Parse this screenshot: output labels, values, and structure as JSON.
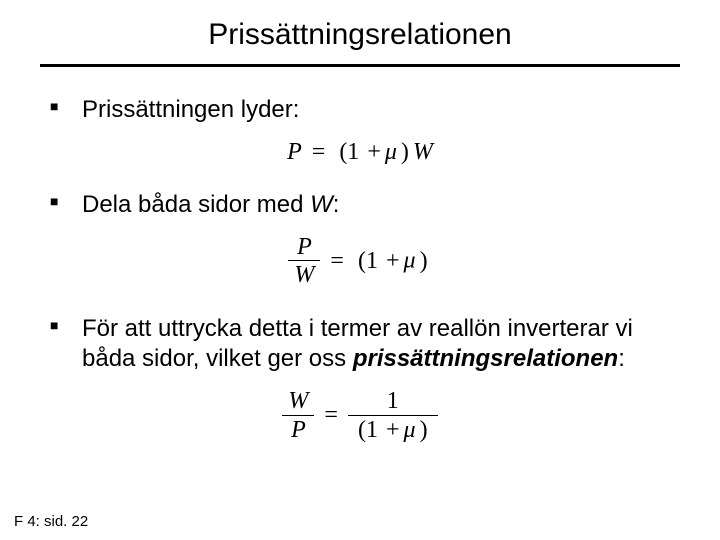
{
  "title": "Prissättningsrelationen",
  "bullets": {
    "b1": "Prissättningen lyder:",
    "b2_pre": "Dela båda sidor med ",
    "b2_var": "W",
    "b2_post": ":",
    "b3_pre": "För att uttrycka detta i termer av reallön inverterar vi båda sidor, vilket ger oss ",
    "b3_bold": "prissättningsrelationen",
    "b3_post": ":"
  },
  "eq1": {
    "P": "P",
    "eq": "=",
    "lp": "(1",
    "plus": "+",
    "mu": "μ",
    "rp": ")",
    "W": "W"
  },
  "eq2": {
    "num": "P",
    "den": "W",
    "eq": "=",
    "lp": "(1",
    "plus": "+",
    "mu": "μ",
    "rp": ")"
  },
  "eq3": {
    "lnum": "W",
    "lden": "P",
    "eq": "=",
    "rnum": "1",
    "rlp": "(1",
    "rplus": "+",
    "rmu": "μ",
    "rrp": ")"
  },
  "footer": "F 4: sid. 22",
  "colors": {
    "text": "#000000",
    "bg": "#ffffff",
    "rule": "#000000"
  },
  "typography": {
    "title_fontsize": 30,
    "body_fontsize": 24,
    "eq_fontsize": 24,
    "footer_fontsize": 15
  }
}
